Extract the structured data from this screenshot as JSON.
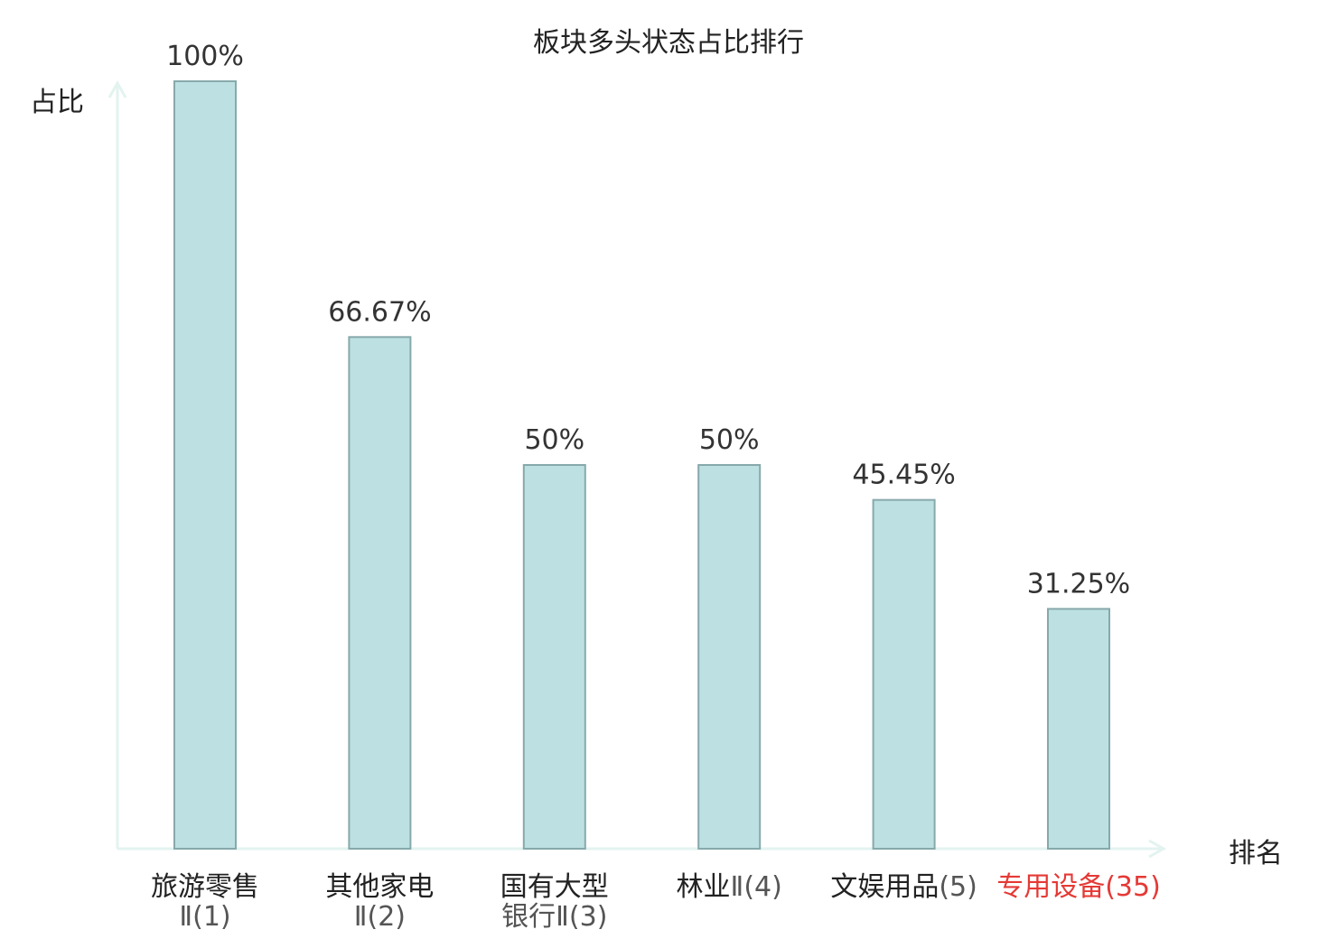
{
  "chart_data": {
    "type": "bar",
    "title": "板块多头状态占比排行",
    "ylabel": "占比",
    "xlabel": "排名",
    "ylim": [
      0,
      100
    ],
    "categories": [
      {
        "name": "旅游零售",
        "rank": "Ⅱ(1)",
        "line2": "Ⅱ(1)",
        "wrap": true
      },
      {
        "name": "其他家电",
        "rank": "Ⅱ(2)",
        "line2": "Ⅱ(2)",
        "wrap": true
      },
      {
        "name": "国有大型",
        "rank": "银行Ⅱ(3)",
        "line2": "银行Ⅱ(3)",
        "wrap": true
      },
      {
        "name": "林业",
        "rank": "Ⅱ(4)",
        "wrap": false
      },
      {
        "name": "文娱用品",
        "rank": "(5)",
        "wrap": false
      },
      {
        "name": "专用设备",
        "rank": "(35)",
        "wrap": false,
        "highlight": true
      }
    ],
    "values": [
      100,
      66.67,
      50,
      50,
      45.45,
      31.25
    ],
    "value_labels": [
      "100%",
      "66.67%",
      "50%",
      "50%",
      "45.45%",
      "31.25%"
    ],
    "colors": {
      "bar_fill": "#bde0e2",
      "bar_stroke": "#87a9ab",
      "axis": "#e3f3f0",
      "highlight": "#e53935"
    }
  }
}
